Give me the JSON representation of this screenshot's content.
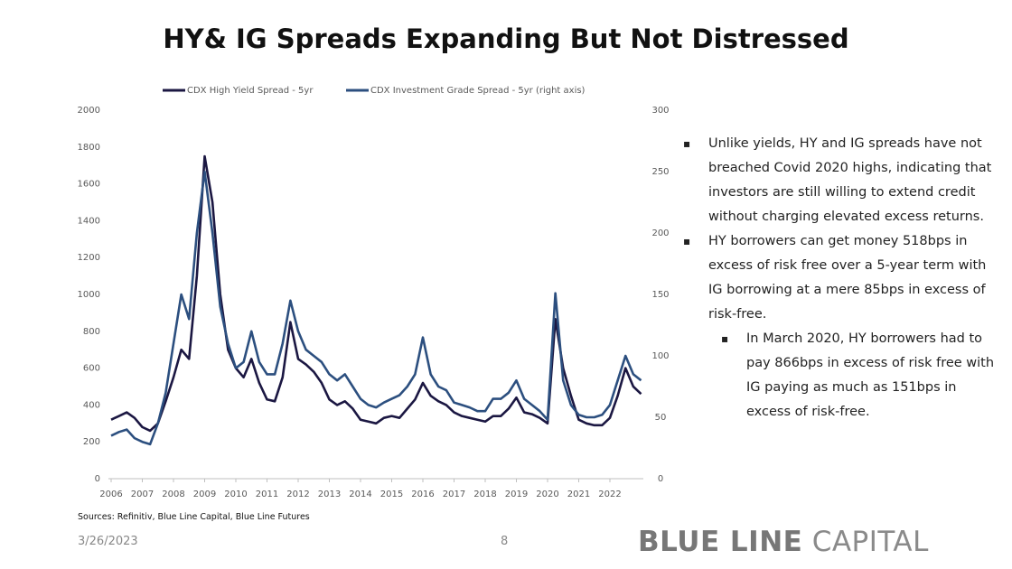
{
  "chart_data": {
    "type": "line",
    "title": "HY& IG Spreads Expanding But Not Distressed",
    "x": [
      2006.0,
      2006.25,
      2006.5,
      2006.75,
      2007.0,
      2007.25,
      2007.5,
      2007.75,
      2008.0,
      2008.25,
      2008.5,
      2008.75,
      2009.0,
      2009.25,
      2009.5,
      2009.75,
      2010.0,
      2010.25,
      2010.5,
      2010.75,
      2011.0,
      2011.25,
      2011.5,
      2011.75,
      2012.0,
      2012.25,
      2012.5,
      2012.75,
      2013.0,
      2013.25,
      2013.5,
      2013.75,
      2014.0,
      2014.25,
      2014.5,
      2014.75,
      2015.0,
      2015.25,
      2015.5,
      2015.75,
      2016.0,
      2016.25,
      2016.5,
      2016.75,
      2017.0,
      2017.25,
      2017.5,
      2017.75,
      2018.0,
      2018.25,
      2018.5,
      2018.75,
      2019.0,
      2019.25,
      2019.5,
      2019.75,
      2020.0,
      2020.25,
      2020.5,
      2020.75,
      2021.0,
      2021.25,
      2021.5,
      2021.75,
      2022.0,
      2022.25,
      2022.5,
      2022.75,
      2023.0
    ],
    "series": [
      {
        "name": "CDX High Yield Spread - 5yr",
        "color": "#1b1742",
        "axis": "y",
        "values": [
          320,
          340,
          360,
          330,
          280,
          260,
          300,
          420,
          550,
          700,
          650,
          1100,
          1750,
          1500,
          1000,
          700,
          600,
          550,
          650,
          520,
          430,
          420,
          550,
          850,
          650,
          620,
          580,
          520,
          430,
          400,
          420,
          380,
          320,
          310,
          300,
          330,
          340,
          330,
          380,
          430,
          520,
          450,
          420,
          400,
          360,
          340,
          330,
          320,
          310,
          340,
          340,
          380,
          440,
          360,
          350,
          330,
          300,
          866,
          600,
          450,
          320,
          300,
          290,
          290,
          330,
          450,
          600,
          500,
          460
        ]
      },
      {
        "name": "CDX Investment Grade Spread - 5yr (right axis)",
        "color": "#2c4f7f",
        "axis": "y2",
        "values": [
          35,
          38,
          40,
          33,
          30,
          28,
          45,
          70,
          110,
          150,
          130,
          200,
          250,
          200,
          140,
          110,
          90,
          95,
          120,
          95,
          85,
          85,
          110,
          145,
          120,
          105,
          100,
          95,
          85,
          80,
          85,
          75,
          65,
          60,
          58,
          62,
          65,
          68,
          75,
          85,
          115,
          85,
          75,
          72,
          62,
          60,
          58,
          55,
          55,
          65,
          65,
          70,
          80,
          65,
          60,
          55,
          48,
          151,
          80,
          60,
          52,
          50,
          50,
          52,
          60,
          80,
          100,
          85,
          80
        ]
      }
    ],
    "xlim": [
      2006,
      2023
    ],
    "xticks": [
      2006,
      2007,
      2008,
      2009,
      2010,
      2011,
      2012,
      2013,
      2014,
      2015,
      2016,
      2017,
      2018,
      2019,
      2020,
      2021,
      2022
    ],
    "ylim": [
      0,
      2000
    ],
    "yticks": [
      0,
      200,
      400,
      600,
      800,
      1000,
      1200,
      1400,
      1600,
      1800,
      2000
    ],
    "y2lim": [
      0,
      300
    ],
    "y2ticks": [
      0,
      50,
      100,
      150,
      200,
      250,
      300
    ],
    "legend": "top"
  },
  "bullets": [
    "Unlike yields, HY and IG spreads have not breached Covid 2020 highs, indicating that investors are still willing to extend credit without charging elevated excess returns.",
    "HY borrowers can get money 518bps in excess of risk free over a 5-year term with IG borrowing at a mere 85bps in excess of risk-free."
  ],
  "sub_bullets": [
    "In March 2020, HY borrowers had to pay 866bps in excess of risk free with IG paying as much as 151bps in excess of risk-free."
  ],
  "sources": "Sources: Refinitiv, Blue Line Capital, Blue Line Futures",
  "date": "3/26/2023",
  "page": 8,
  "logo": {
    "bold": "BLUE LINE",
    "light": "CAPITAL"
  }
}
